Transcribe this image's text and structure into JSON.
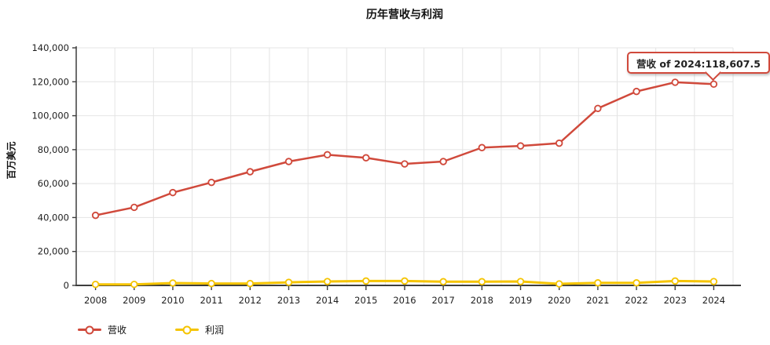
{
  "tooltip": {
    "text": "营收 of 2024:118,607.5"
  },
  "chart_data": {
    "type": "line",
    "title": "历年营收与利润",
    "xlabel": "",
    "ylabel": "百万美元",
    "categories": [
      "2008",
      "2009",
      "2010",
      "2011",
      "2012",
      "2013",
      "2014",
      "2015",
      "2016",
      "2017",
      "2018",
      "2019",
      "2020",
      "2021",
      "2022",
      "2023",
      "2024"
    ],
    "series": [
      {
        "name": "营收",
        "color": "#d0493b",
        "values": [
          41300,
          46000,
          54700,
          60700,
          67000,
          73000,
          77000,
          75200,
          71600,
          73000,
          81200,
          82200,
          83800,
          104300,
          114300,
          119700,
          118607.5
        ]
      },
      {
        "name": "利润",
        "color": "#f5c400",
        "values": [
          600,
          600,
          1400,
          1100,
          1100,
          1800,
          2300,
          2600,
          2600,
          2200,
          2200,
          2300,
          900,
          1500,
          1500,
          2600,
          2300
        ]
      }
    ],
    "ylim": [
      0,
      140000
    ],
    "ytick_step": 20000,
    "grid": true,
    "marker": "open-circle",
    "legend_position": "bottom-left",
    "tooltip_target": {
      "series": "营收",
      "category": "2024",
      "value": 118607.5
    }
  }
}
